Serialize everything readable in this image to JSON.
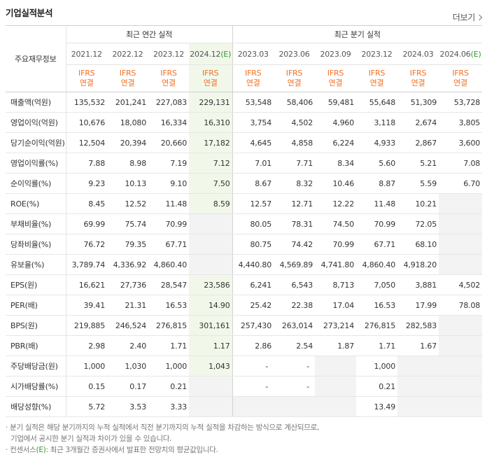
{
  "section_title": "기업실적분석",
  "more_label": "더보기",
  "header": {
    "row_label": "주요재무정보",
    "annual_group": "최근 연간 실적",
    "quarter_group": "최근 분기 실적",
    "periods": [
      "2021.12",
      "2022.12",
      "2023.12",
      "2024.12",
      "2023.03",
      "2023.06",
      "2023.09",
      "2023.12",
      "2024.03",
      "2024.06"
    ],
    "estimate_mark": "(E)",
    "ifrs_top": "IFRS",
    "ifrs_bottom": "연결"
  },
  "rows": [
    {
      "label": "매출액(억원)",
      "values": [
        "135,532",
        "201,241",
        "227,083",
        "229,131",
        "53,548",
        "58,406",
        "59,481",
        "55,648",
        "51,309",
        "53,728"
      ]
    },
    {
      "label": "영업이익(억원)",
      "values": [
        "10,676",
        "18,080",
        "16,334",
        "16,310",
        "3,754",
        "4,502",
        "4,960",
        "3,118",
        "2,674",
        "3,805"
      ]
    },
    {
      "label": "당기순이익(억원)",
      "values": [
        "12,504",
        "20,394",
        "20,660",
        "17,182",
        "4,645",
        "4,858",
        "6,224",
        "4,933",
        "2,867",
        "3,600"
      ]
    },
    {
      "label": "영업이익률(%)",
      "values": [
        "7.88",
        "8.98",
        "7.19",
        "7.12",
        "7.01",
        "7.71",
        "8.34",
        "5.60",
        "5.21",
        "7.08"
      ]
    },
    {
      "label": "순이익률(%)",
      "values": [
        "9.23",
        "10.13",
        "9.10",
        "7.50",
        "8.67",
        "8.32",
        "10.46",
        "8.87",
        "5.59",
        "6.70"
      ]
    },
    {
      "label": "ROE(%)",
      "values": [
        "8.45",
        "12.52",
        "11.48",
        "8.59",
        "12.57",
        "12.71",
        "12.22",
        "11.48",
        "10.21",
        ""
      ]
    },
    {
      "label": "부채비율(%)",
      "values": [
        "69.99",
        "75.74",
        "70.99",
        "",
        "80.05",
        "78.31",
        "74.50",
        "70.99",
        "72.05",
        ""
      ]
    },
    {
      "label": "당좌비율(%)",
      "values": [
        "76.72",
        "79.35",
        "67.71",
        "",
        "80.75",
        "74.42",
        "70.99",
        "67.71",
        "68.10",
        ""
      ]
    },
    {
      "label": "유보율(%)",
      "values": [
        "3,789.74",
        "4,336.92",
        "4,860.40",
        "",
        "4,440.80",
        "4,569.89",
        "4,741.80",
        "4,860.40",
        "4,918.20",
        ""
      ]
    },
    {
      "label": "EPS(원)",
      "values": [
        "16,621",
        "27,736",
        "28,547",
        "23,586",
        "6,241",
        "6,543",
        "8,713",
        "7,050",
        "3,881",
        "4,502"
      ]
    },
    {
      "label": "PER(배)",
      "values": [
        "39.41",
        "21.31",
        "16.53",
        "14.90",
        "25.42",
        "22.38",
        "17.04",
        "16.53",
        "17.99",
        "78.08"
      ]
    },
    {
      "label": "BPS(원)",
      "values": [
        "219,885",
        "246,524",
        "276,815",
        "301,161",
        "257,430",
        "263,014",
        "273,214",
        "276,815",
        "282,583",
        ""
      ]
    },
    {
      "label": "PBR(배)",
      "values": [
        "2.98",
        "2.40",
        "1.71",
        "1.17",
        "2.86",
        "2.54",
        "1.87",
        "1.71",
        "1.67",
        ""
      ]
    },
    {
      "label": "주당배당금(원)",
      "values": [
        "1,000",
        "1,030",
        "1,000",
        "1,043",
        "-",
        "-",
        "",
        "1,000",
        "",
        ""
      ]
    },
    {
      "label": "시가배당률(%)",
      "values": [
        "0.15",
        "0.17",
        "0.21",
        "",
        "-",
        "-",
        "",
        "0.21",
        "",
        ""
      ]
    },
    {
      "label": "배당성향(%)",
      "values": [
        "5.72",
        "3.53",
        "3.33",
        "",
        "",
        "",
        "",
        "13.49",
        "",
        ""
      ]
    }
  ],
  "notes": {
    "line1": "분기 실적은 해당 분기까지의 누적 실적에서 직전 분기까지의 누적 실적을 차감하는 방식으로 계산되므로,",
    "line2": "기업에서 공시한 분기 실적과 차이가 있을 수 있습니다.",
    "line3_prefix": "컨센서스",
    "line3_mark": "(E)",
    "line3_rest": ": 최근 3개월간 증권사에서 발표한 전망치의 평균값입니다."
  },
  "colors": {
    "ifrs": "#f27022",
    "estimate_col_bg": "#f1f8ea",
    "empty_bg": "#f3f3f3",
    "estimate_mark": "#2e9a2e"
  }
}
